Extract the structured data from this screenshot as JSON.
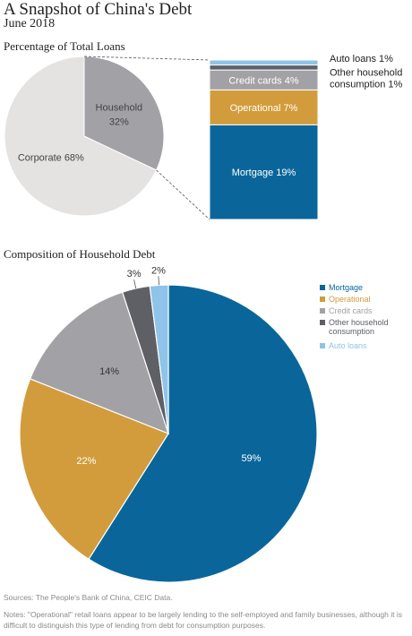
{
  "header": {
    "title": "A Snapshot of China's Debt",
    "subtitle": "June 2018"
  },
  "footer": {
    "sources": "Sources: The People's Bank of China, CEIC Data.",
    "notes": "Notes: \"Operational\" retail loans appear to be largely lending to the self-employed and family businesses, although it is difficult to distinguish this type of lending from debt for consumption purposes."
  },
  "chart_data": [
    {
      "type": "pie",
      "title": "Percentage of Total Loans",
      "slices": [
        {
          "name": "Household",
          "value": 32,
          "label_lines": [
            "Household",
            "32%"
          ],
          "color": "#a2a1a6"
        },
        {
          "name": "Corporate",
          "value": 68,
          "label_lines": [
            "Corporate 68%"
          ],
          "color": "#e4e3e2"
        }
      ]
    },
    {
      "type": "bar",
      "subtype": "stacked",
      "title": "",
      "unit": "% of total loans",
      "segments": [
        {
          "name": "Mortgage",
          "value": 19,
          "label": "Mortgage 19%",
          "color": "#0a669a",
          "label_inside": true
        },
        {
          "name": "Operational",
          "value": 7,
          "label": "Operational 7%",
          "color": "#d29c3c",
          "label_inside": true
        },
        {
          "name": "Credit cards",
          "value": 4,
          "label": "Credit cards 4%",
          "color": "#a2a1a6",
          "label_inside": true
        },
        {
          "name": "Other household consumption",
          "value": 1,
          "label_lines": [
            "Other household",
            "consumption 1%"
          ],
          "color": "#5e6066",
          "label_inside": false
        },
        {
          "name": "Auto loans",
          "value": 1,
          "label": "Auto loans 1%",
          "color": "#8fc3e8",
          "label_inside": false
        }
      ]
    },
    {
      "type": "pie",
      "title": "Composition of Household Debt",
      "slices": [
        {
          "name": "Mortgage",
          "value": 59,
          "label": "59%",
          "color": "#0a669a"
        },
        {
          "name": "Operational",
          "value": 22,
          "label": "22%",
          "color": "#d29c3c"
        },
        {
          "name": "Credit cards",
          "value": 14,
          "label": "14%",
          "color": "#a2a1a6"
        },
        {
          "name": "Other household consumption",
          "value": 3,
          "label": "3%",
          "color": "#5e6066"
        },
        {
          "name": "Auto loans",
          "value": 2,
          "label": "2%",
          "color": "#8fc3e8"
        }
      ],
      "legend": {
        "position": "right",
        "items": [
          {
            "label_lines": [
              "Mortgage"
            ],
            "color": "#0a669a"
          },
          {
            "label_lines": [
              "Operational"
            ],
            "color": "#d29c3c"
          },
          {
            "label_lines": [
              "Credit cards"
            ],
            "color": "#a2a1a6"
          },
          {
            "label_lines": [
              "Other household",
              "consumption"
            ],
            "color": "#5e6066"
          },
          {
            "label_lines": [
              "Auto loans"
            ],
            "color": "#8fc3e8"
          }
        ]
      }
    }
  ]
}
